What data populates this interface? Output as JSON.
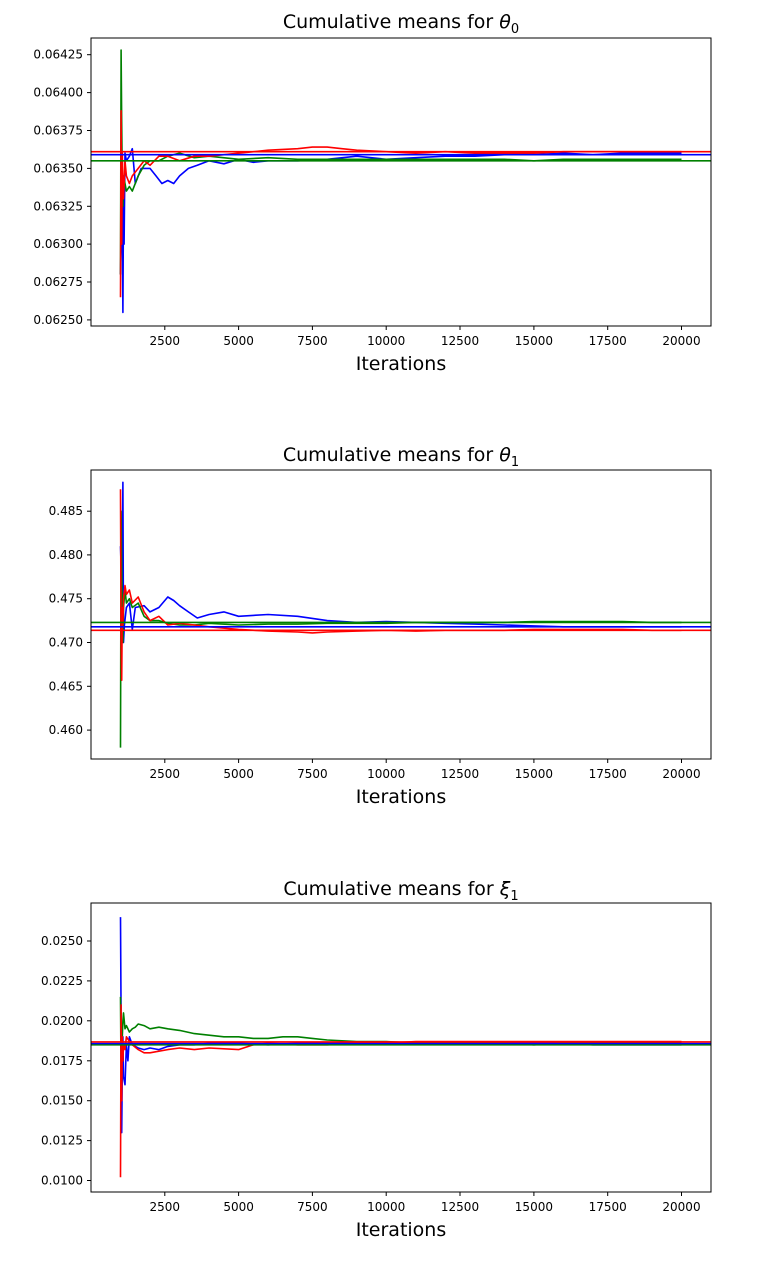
{
  "chart_data": [
    {
      "type": "line",
      "title": "Cumulative means for ",
      "title_symbol": "θ",
      "title_subscript": "0",
      "xlabel": "Iterations",
      "xlim": [
        0,
        21000
      ],
      "ylim": [
        0.06246,
        0.06436
      ],
      "xticks": [
        2500,
        5000,
        7500,
        10000,
        12500,
        15000,
        17500,
        20000
      ],
      "xtick_labels": [
        "2500",
        "5000",
        "7500",
        "10000",
        "12500",
        "15000",
        "17500",
        "20000"
      ],
      "yticks": [
        0.0625,
        0.06275,
        0.063,
        0.06325,
        0.0635,
        0.06375,
        0.064,
        0.06425
      ],
      "ytick_labels": [
        "0.06250",
        "0.06275",
        "0.06300",
        "0.06325",
        "0.06350",
        "0.06375",
        "0.06400",
        "0.06425"
      ],
      "grid": false,
      "hlines": [
        {
          "color": "#ff0000",
          "y": 0.06361
        },
        {
          "color": "#0000ff",
          "y": 0.06359
        },
        {
          "color": "#008000",
          "y": 0.06355
        }
      ],
      "series": [
        {
          "color": "#0000ff",
          "x": [
            1000,
            1050,
            1080,
            1100,
            1120,
            1150,
            1200,
            1300,
            1400,
            1500,
            1700,
            2000,
            2200,
            2400,
            2600,
            2800,
            3000,
            3300,
            3600,
            4000,
            4500,
            5000,
            5500,
            6000,
            7000,
            8000,
            9000,
            10000,
            11000,
            12000,
            13000,
            14000,
            15000,
            16000,
            17000,
            18000,
            19000,
            20000
          ],
          "y": [
            0.0628,
            0.0634,
            0.06255,
            0.0633,
            0.063,
            0.0636,
            0.06355,
            0.06358,
            0.06363,
            0.0634,
            0.0635,
            0.0635,
            0.06345,
            0.0634,
            0.06342,
            0.0634,
            0.06345,
            0.0635,
            0.06352,
            0.06355,
            0.06353,
            0.06356,
            0.06354,
            0.06355,
            0.06355,
            0.06356,
            0.06358,
            0.06356,
            0.06357,
            0.06358,
            0.06358,
            0.06359,
            0.06359,
            0.0636,
            0.06359,
            0.0636,
            0.0636,
            0.0636
          ]
        },
        {
          "color": "#008000",
          "x": [
            1000,
            1020,
            1040,
            1060,
            1080,
            1100,
            1150,
            1200,
            1300,
            1400,
            1600,
            1800,
            2000,
            2300,
            2600,
            3000,
            3500,
            4000,
            5000,
            6000,
            7000,
            8000,
            9000,
            10000,
            11000,
            12000,
            13000,
            14000,
            15000,
            16000,
            17000,
            18000,
            19000,
            20000
          ],
          "y": [
            0.0628,
            0.06428,
            0.0638,
            0.0634,
            0.06325,
            0.06345,
            0.0634,
            0.06335,
            0.06338,
            0.06335,
            0.06345,
            0.06352,
            0.06355,
            0.06355,
            0.06358,
            0.0636,
            0.06357,
            0.06358,
            0.06356,
            0.06357,
            0.06356,
            0.06356,
            0.06356,
            0.06356,
            0.06356,
            0.06356,
            0.06356,
            0.06356,
            0.06355,
            0.06356,
            0.06356,
            0.06356,
            0.06356,
            0.06356
          ]
        },
        {
          "color": "#ff0000",
          "x": [
            1000,
            1020,
            1040,
            1060,
            1080,
            1100,
            1150,
            1200,
            1300,
            1400,
            1600,
            1800,
            2000,
            2300,
            2600,
            3000,
            3500,
            4000,
            5000,
            6000,
            7000,
            7500,
            8000,
            8500,
            9000,
            10000,
            11000,
            12000,
            13000,
            14000,
            15000,
            16000,
            17000,
            18000,
            19000,
            20000
          ],
          "y": [
            0.06265,
            0.06388,
            0.063,
            0.0636,
            0.0634,
            0.0633,
            0.06355,
            0.06345,
            0.0634,
            0.06345,
            0.0635,
            0.06355,
            0.06352,
            0.06358,
            0.06358,
            0.06355,
            0.06358,
            0.06358,
            0.0636,
            0.06362,
            0.06363,
            0.06364,
            0.06364,
            0.06363,
            0.06362,
            0.06361,
            0.0636,
            0.06361,
            0.0636,
            0.0636,
            0.0636,
            0.06361,
            0.06361,
            0.06361,
            0.06361,
            0.06361
          ]
        }
      ]
    },
    {
      "type": "line",
      "title": "Cumulative means for ",
      "title_symbol": "θ",
      "title_subscript": "1",
      "xlabel": "Iterations",
      "xlim": [
        0,
        21000
      ],
      "ylim": [
        0.4567,
        0.4897
      ],
      "xticks": [
        2500,
        5000,
        7500,
        10000,
        12500,
        15000,
        17500,
        20000
      ],
      "xtick_labels": [
        "2500",
        "5000",
        "7500",
        "10000",
        "12500",
        "15000",
        "17500",
        "20000"
      ],
      "yticks": [
        0.46,
        0.465,
        0.47,
        0.475,
        0.48,
        0.485
      ],
      "ytick_labels": [
        "0.460",
        "0.465",
        "0.470",
        "0.475",
        "0.480",
        "0.485"
      ],
      "grid": false,
      "hlines": [
        {
          "color": "#008000",
          "y": 0.4723
        },
        {
          "color": "#0000ff",
          "y": 0.4718
        },
        {
          "color": "#ff0000",
          "y": 0.4714
        }
      ],
      "series": [
        {
          "color": "#0000ff",
          "x": [
            1000,
            1050,
            1080,
            1100,
            1130,
            1200,
            1300,
            1400,
            1500,
            1800,
            2000,
            2300,
            2600,
            2800,
            3000,
            3300,
            3600,
            4000,
            4500,
            5000,
            6000,
            7000,
            8000,
            9000,
            10000,
            11000,
            12000,
            13000,
            14000,
            15000,
            16000,
            17000,
            18000,
            19000,
            20000
          ],
          "y": [
            0.481,
            0.475,
            0.4883,
            0.47,
            0.472,
            0.474,
            0.4745,
            0.4715,
            0.474,
            0.4742,
            0.4735,
            0.474,
            0.4752,
            0.4748,
            0.4742,
            0.4735,
            0.4728,
            0.4732,
            0.4735,
            0.473,
            0.4732,
            0.473,
            0.4725,
            0.4723,
            0.4724,
            0.4723,
            0.4722,
            0.4721,
            0.472,
            0.4719,
            0.4718,
            0.4718,
            0.4718,
            0.4718,
            0.4718
          ]
        },
        {
          "color": "#008000",
          "x": [
            1000,
            1020,
            1050,
            1080,
            1100,
            1150,
            1200,
            1300,
            1400,
            1600,
            1800,
            2000,
            2300,
            2600,
            3000,
            3500,
            4000,
            5000,
            6000,
            7000,
            8000,
            9000,
            10000,
            11000,
            12000,
            13000,
            14000,
            15000,
            16000,
            17000,
            18000,
            19000,
            20000
          ],
          "y": [
            0.458,
            0.485,
            0.476,
            0.47,
            0.474,
            0.476,
            0.4745,
            0.475,
            0.474,
            0.4745,
            0.473,
            0.4725,
            0.4725,
            0.4722,
            0.472,
            0.472,
            0.4722,
            0.472,
            0.4721,
            0.4721,
            0.4722,
            0.4722,
            0.4722,
            0.4723,
            0.4723,
            0.4723,
            0.4723,
            0.4724,
            0.4724,
            0.4724,
            0.4724,
            0.4723,
            0.4723
          ]
        },
        {
          "color": "#ff0000",
          "x": [
            1000,
            1020,
            1040,
            1060,
            1080,
            1100,
            1150,
            1200,
            1300,
            1400,
            1600,
            1800,
            2000,
            2300,
            2600,
            3000,
            3500,
            4000,
            5000,
            6000,
            7000,
            7500,
            8000,
            9000,
            10000,
            11000,
            12000,
            13000,
            14000,
            15000,
            16000,
            17000,
            18000,
            19000,
            20000
          ],
          "y": [
            0.4875,
            0.47,
            0.4657,
            0.474,
            0.472,
            0.475,
            0.4765,
            0.4755,
            0.476,
            0.4745,
            0.4752,
            0.4735,
            0.4725,
            0.473,
            0.472,
            0.4722,
            0.472,
            0.4718,
            0.4715,
            0.4713,
            0.4712,
            0.4711,
            0.4712,
            0.4713,
            0.4714,
            0.4713,
            0.4714,
            0.4714,
            0.4714,
            0.4715,
            0.4715,
            0.4715,
            0.4715,
            0.4714,
            0.4714
          ]
        }
      ]
    },
    {
      "type": "line",
      "title": "Cumulative means for ",
      "title_symbol": "ξ",
      "title_subscript": "1",
      "xlabel": "Iterations",
      "xlim": [
        0,
        21000
      ],
      "ylim": [
        0.00928,
        0.02738
      ],
      "xticks": [
        2500,
        5000,
        7500,
        10000,
        12500,
        15000,
        17500,
        20000
      ],
      "xtick_labels": [
        "2500",
        "5000",
        "7500",
        "10000",
        "12500",
        "15000",
        "17500",
        "20000"
      ],
      "yticks": [
        0.01,
        0.0125,
        0.015,
        0.0175,
        0.02,
        0.0225,
        0.025
      ],
      "ytick_labels": [
        "0.0100",
        "0.0125",
        "0.0150",
        "0.0175",
        "0.0200",
        "0.0225",
        "0.0250"
      ],
      "grid": false,
      "hlines": [
        {
          "color": "#008000",
          "y": 0.0185
        },
        {
          "color": "#0000ff",
          "y": 0.01858
        },
        {
          "color": "#ff0000",
          "y": 0.01868
        }
      ],
      "series": [
        {
          "color": "#0000ff",
          "x": [
            1000,
            1020,
            1040,
            1060,
            1080,
            1100,
            1150,
            1200,
            1250,
            1300,
            1400,
            1600,
            1800,
            2000,
            2300,
            2600,
            3000,
            3500,
            4000,
            5000,
            6000,
            7000,
            8000,
            9000,
            10000,
            11000,
            12000,
            13000,
            14000,
            15000,
            16000,
            17000,
            18000,
            19000,
            20000
          ],
          "y": [
            0.0265,
            0.02,
            0.013,
            0.017,
            0.019,
            0.0165,
            0.016,
            0.0185,
            0.0175,
            0.019,
            0.0185,
            0.0183,
            0.0182,
            0.0183,
            0.0182,
            0.0184,
            0.0185,
            0.0185,
            0.0186,
            0.0186,
            0.0185,
            0.0186,
            0.0186,
            0.0186,
            0.0186,
            0.0186,
            0.0186,
            0.0186,
            0.0186,
            0.0186,
            0.0186,
            0.0185,
            0.0185,
            0.0185,
            0.0185
          ]
        },
        {
          "color": "#008000",
          "x": [
            1000,
            1020,
            1050,
            1080,
            1100,
            1150,
            1200,
            1300,
            1400,
            1500,
            1600,
            1800,
            2000,
            2300,
            2600,
            3000,
            3500,
            4000,
            4500,
            5000,
            5500,
            6000,
            6500,
            7000,
            7500,
            8000,
            9000,
            10000,
            11000,
            12000,
            13000,
            14000,
            15000,
            16000,
            17000,
            18000,
            19000,
            20000
          ],
          "y": [
            0.0215,
            0.016,
            0.0185,
            0.02,
            0.0205,
            0.0195,
            0.0197,
            0.0193,
            0.0195,
            0.0196,
            0.0198,
            0.0197,
            0.0195,
            0.0196,
            0.0195,
            0.0194,
            0.0192,
            0.0191,
            0.019,
            0.019,
            0.0189,
            0.0189,
            0.019,
            0.019,
            0.0189,
            0.0188,
            0.0187,
            0.0187,
            0.0186,
            0.0186,
            0.0186,
            0.0186,
            0.0185,
            0.0186,
            0.0186,
            0.0186,
            0.0186,
            0.0186
          ]
        },
        {
          "color": "#ff0000",
          "x": [
            1000,
            1020,
            1040,
            1060,
            1080,
            1100,
            1150,
            1200,
            1300,
            1400,
            1600,
            1800,
            2000,
            2300,
            2600,
            3000,
            3500,
            4000,
            5000,
            5500,
            6000,
            7000,
            8000,
            9000,
            10000,
            11000,
            12000,
            13000,
            14000,
            15000,
            16000,
            17000,
            18000,
            19000,
            20000
          ],
          "y": [
            0.0102,
            0.021,
            0.015,
            0.019,
            0.0175,
            0.0185,
            0.0182,
            0.019,
            0.0187,
            0.0185,
            0.0182,
            0.018,
            0.018,
            0.0181,
            0.0182,
            0.0183,
            0.0182,
            0.0183,
            0.0182,
            0.0185,
            0.0186,
            0.0185,
            0.0185,
            0.0186,
            0.0186,
            0.0187,
            0.0187,
            0.0187,
            0.0187,
            0.0187,
            0.0187,
            0.0187,
            0.0187,
            0.0187,
            0.0187
          ]
        }
      ]
    }
  ]
}
